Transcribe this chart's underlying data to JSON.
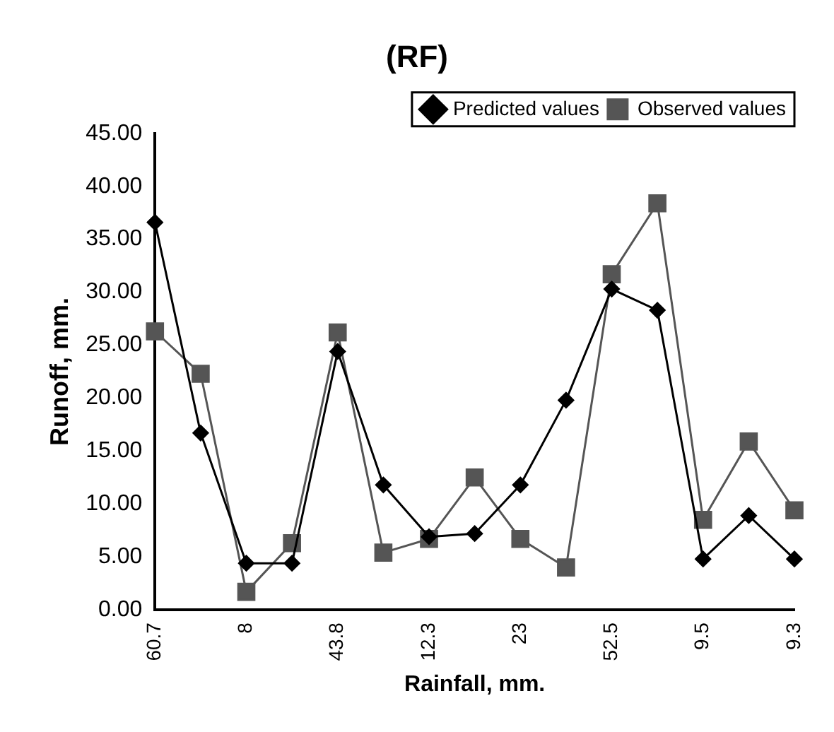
{
  "chart_data": {
    "type": "line",
    "title": "(RF)",
    "xlabel": "Rainfall, mm.",
    "ylabel": "Runoff, mm.",
    "categories": [
      "60.7",
      null,
      "8",
      null,
      "43.8",
      null,
      "12.3",
      null,
      "23",
      null,
      "52.5",
      null,
      "9.5",
      null,
      "9.3"
    ],
    "series": [
      {
        "name": "Predicted values",
        "color": "#000000",
        "marker": "diamond",
        "values": [
          36.6,
          16.7,
          4.4,
          4.4,
          24.4,
          11.8,
          6.9,
          7.2,
          11.8,
          19.8,
          30.3,
          28.3,
          4.8,
          8.9,
          4.8
        ]
      },
      {
        "name": "Observed values",
        "color": "#555555",
        "marker": "square",
        "values": [
          26.3,
          22.3,
          1.7,
          6.3,
          26.2,
          5.4,
          6.7,
          12.5,
          6.7,
          4.0,
          31.7,
          38.4,
          8.5,
          15.9,
          9.4
        ]
      }
    ],
    "ylim": [
      0,
      45
    ],
    "yticks": [
      {
        "value": 0,
        "label": "0.00"
      },
      {
        "value": 5,
        "label": "5.00"
      },
      {
        "value": 10,
        "label": "10.00"
      },
      {
        "value": 15,
        "label": "15.00"
      },
      {
        "value": 20,
        "label": "20.00"
      },
      {
        "value": 25,
        "label": "25.00"
      },
      {
        "value": 30,
        "label": "30.00"
      },
      {
        "value": 35,
        "label": "35.00"
      },
      {
        "value": 40,
        "label": "40.00"
      },
      {
        "value": 45,
        "label": "45.00"
      }
    ],
    "grid": false,
    "legend": "top right",
    "line_style": "solid"
  }
}
